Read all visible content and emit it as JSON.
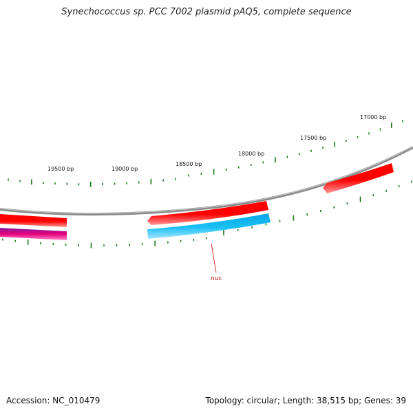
{
  "header": {
    "title": "Synechococcus sp. PCC 7002 plasmid pAQ5, complete sequence"
  },
  "footer": {
    "accession": "Accession: NC_010479",
    "summary": "Topology: circular; Length: 38,515 bp; Genes: 39"
  },
  "ticks": [
    {
      "label": "17000 bp"
    },
    {
      "label": "17500 bp"
    },
    {
      "label": "18000 bp"
    },
    {
      "label": "18500 bp"
    },
    {
      "label": "19000 bp"
    },
    {
      "label": "19500 bp"
    }
  ],
  "genes": [
    {
      "name": "nuc",
      "label": "nuc",
      "color": "#19b6f0"
    },
    {
      "name": "gene-red-1",
      "color": "#ff0000"
    },
    {
      "name": "gene-red-2",
      "color": "#ff0000"
    },
    {
      "name": "gene-red-3",
      "color": "#ff0000"
    },
    {
      "name": "gene-magenta",
      "color": "#e6006e"
    }
  ],
  "colors": {
    "backbone": "#8a8a8a",
    "tick": "#1a7a1a",
    "forward": "#ff0000",
    "reverse": "#19b6f0",
    "magenta": "#e6006e",
    "label_line": "#cc0000"
  }
}
